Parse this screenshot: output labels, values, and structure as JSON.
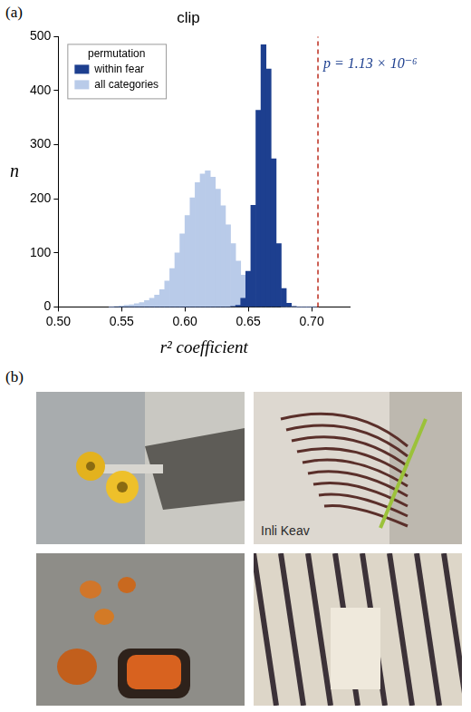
{
  "panel_labels": [
    "(a)",
    "(b)"
  ],
  "chart_data": {
    "type": "histogram",
    "title": "clip",
    "x_label": "r² coefficient",
    "y_label": "n",
    "bins": [
      0.54,
      0.544,
      0.548,
      0.552,
      0.556,
      0.56,
      0.564,
      0.568,
      0.572,
      0.576,
      0.58,
      0.584,
      0.588,
      0.592,
      0.596,
      0.6,
      0.604,
      0.608,
      0.612,
      0.616,
      0.62,
      0.624,
      0.628,
      0.632,
      0.636,
      0.64,
      0.644,
      0.648,
      0.652,
      0.656,
      0.66,
      0.664,
      0.668,
      0.672,
      0.676,
      0.68,
      0.684,
      0.688,
      0.692,
      0.696,
      0.7,
      0.704
    ],
    "series": [
      {
        "name": "within fear",
        "color": "#1d3f8f",
        "values": [
          0,
          0,
          0,
          0,
          0,
          0,
          0,
          0,
          0,
          0,
          0,
          0,
          0,
          0,
          0,
          0,
          0,
          0,
          0,
          0,
          0,
          0,
          0,
          0,
          1,
          3,
          16,
          66,
          188,
          364,
          485,
          440,
          274,
          117,
          34,
          7,
          1,
          0,
          0,
          0,
          0
        ]
      },
      {
        "name": "all categories",
        "color": "#b9cbe9",
        "values": [
          0,
          1,
          2,
          3,
          4,
          6,
          8,
          12,
          16,
          22,
          32,
          48,
          71,
          100,
          135,
          169,
          202,
          230,
          246,
          252,
          240,
          218,
          187,
          152,
          117,
          85,
          59,
          38,
          23,
          14,
          8,
          4,
          2,
          1,
          0,
          0,
          0,
          0,
          0,
          0,
          0
        ]
      }
    ],
    "legend": "upper left",
    "legend_title": "permutation",
    "xlim": [
      0.5,
      0.73
    ],
    "xticks": [
      {
        "value": 0.5,
        "label": "0.50"
      },
      0.55,
      {
        "value": 0.6,
        "label": "0.60"
      },
      0.65,
      {
        "value": 0.7,
        "label": "0.70"
      }
    ],
    "ylim": [
      0,
      500
    ],
    "yticks": [
      0,
      100,
      200,
      300,
      400,
      500
    ],
    "grid": false,
    "annotations": [
      {
        "x": 0.705,
        "text": "p = 1.13 × 10⁻⁶"
      }
    ]
  },
  "panel_b_text": "Inli Keav"
}
